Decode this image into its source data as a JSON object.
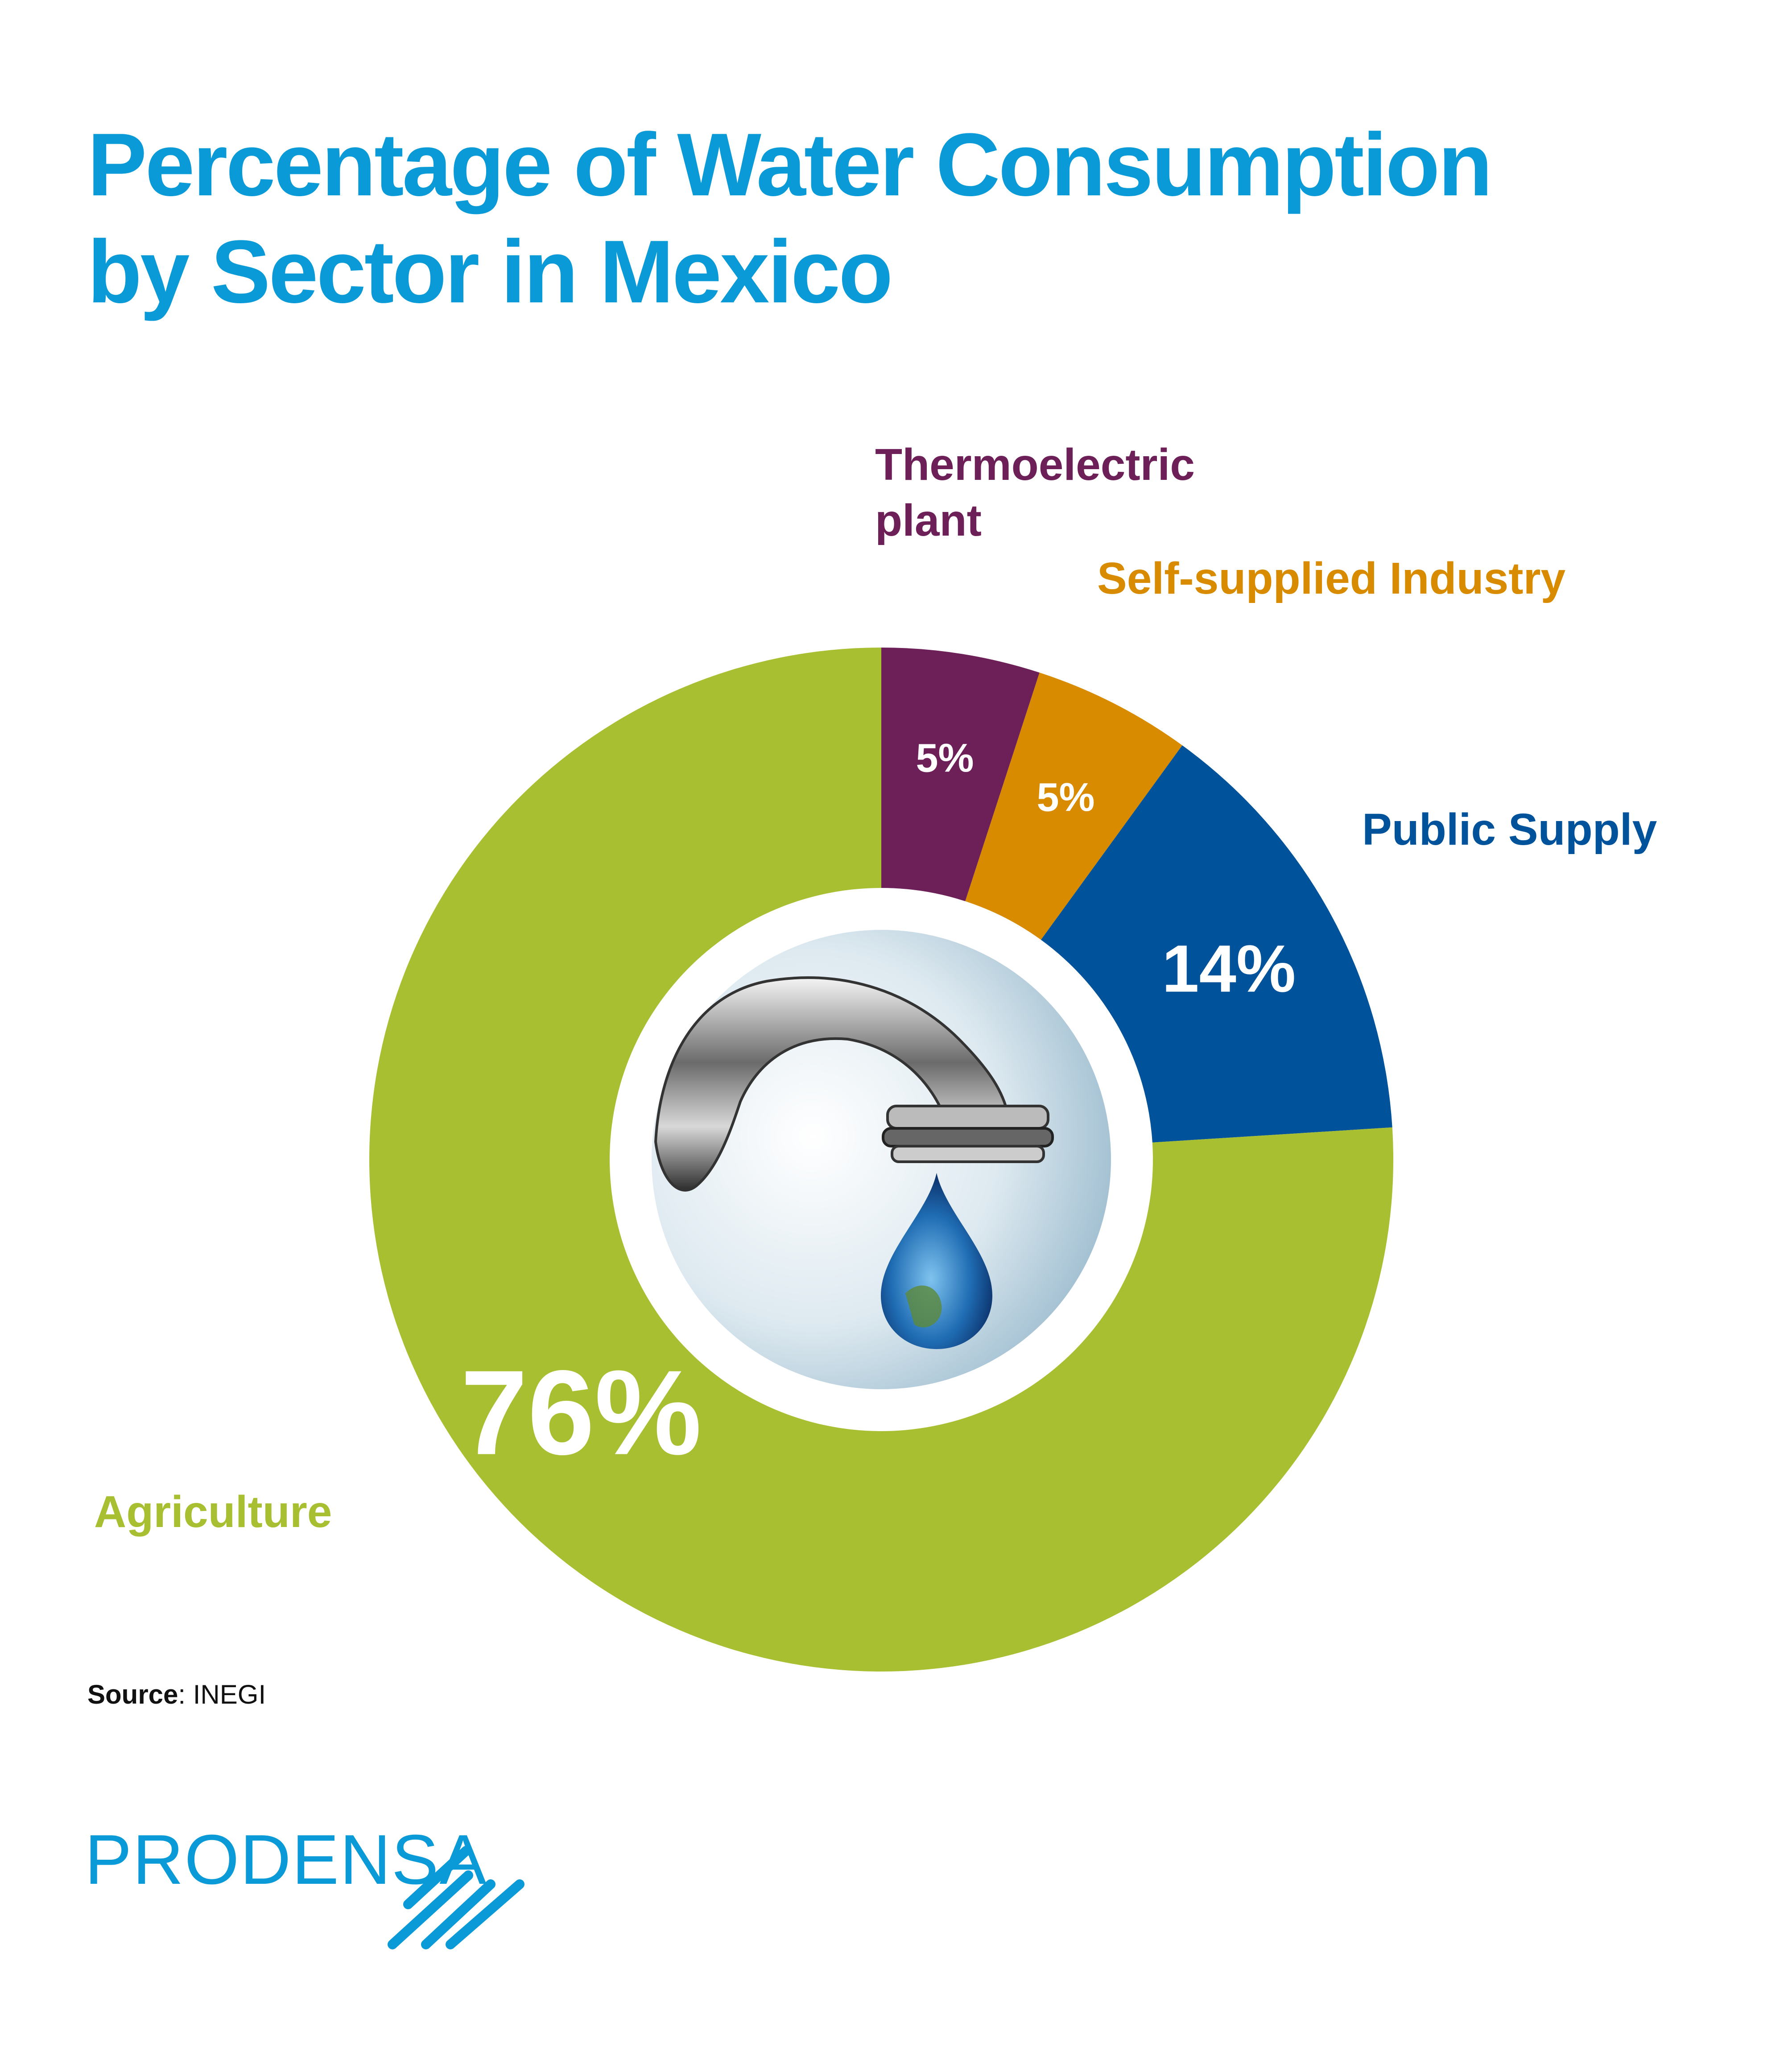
{
  "title": [
    "Percentage of Water Consumption",
    "by Sector in Mexico"
  ],
  "chart_data": {
    "type": "pie",
    "variant": "donut",
    "title": "Percentage of Water Consumption by Sector in Mexico",
    "start": "top",
    "direction": "clockwise",
    "slices": [
      {
        "name": "Thermoelectric plant",
        "label_lines": [
          "Thermoelectric",
          "plant"
        ],
        "value": 5,
        "value_label": "5%",
        "color": "#6d1f57"
      },
      {
        "name": "Self-supplied Industry",
        "label_lines": [
          "Self-supplied Industry"
        ],
        "value": 5,
        "value_label": "5%",
        "color": "#d98b00"
      },
      {
        "name": "Public Supply",
        "label_lines": [
          "Public Supply"
        ],
        "value": 14,
        "value_label": "14%",
        "color": "#00529b"
      },
      {
        "name": "Agriculture",
        "label_lines": [
          "Agriculture"
        ],
        "value": 76,
        "value_label": "76%",
        "color": "#a8bf31"
      }
    ],
    "center_image": "faucet dripping earth-globe water drop"
  },
  "source": {
    "label": "Source",
    "value": ": INEGI"
  },
  "logo": {
    "text": "PRODENSA",
    "color": "#0a9ad7"
  }
}
